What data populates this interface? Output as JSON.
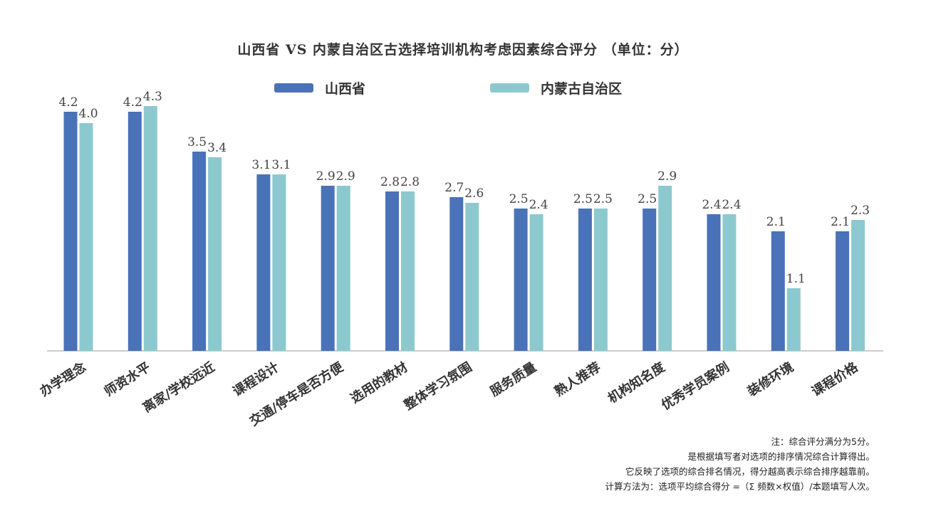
{
  "chart_data": {
    "type": "bar",
    "title": "山西省 VS 内蒙自治区古选择培训机构考虑因素综合评分 （单位：分）",
    "categories": [
      "办学理念",
      "师资水平",
      "离家/学校远近",
      "课程设计",
      "交通/停车是否方便",
      "选用的教材",
      "整体学习氛围",
      "服务质量",
      "熟人推荐",
      "机构知名度",
      "优秀学员案例",
      "装修环境",
      "课程价格"
    ],
    "series": [
      {
        "name": "山西省",
        "color": "#4a72b8",
        "values": [
          4.2,
          4.2,
          3.5,
          3.1,
          2.9,
          2.8,
          2.7,
          2.5,
          2.5,
          2.5,
          2.4,
          2.1,
          2.1
        ]
      },
      {
        "name": "内蒙古自治区",
        "color": "#8cc9cf",
        "values": [
          4.0,
          4.3,
          3.4,
          3.1,
          2.9,
          2.8,
          2.6,
          2.4,
          2.5,
          2.9,
          2.4,
          1.1,
          2.3
        ]
      }
    ],
    "ylim": [
      0,
      4.3
    ],
    "grid": false,
    "legend_position": "top-center"
  },
  "notes": [
    "注：综合评分满分为5分。",
    "是根据填写者对选项的排序情况综合计算得出。",
    "它反映了选项的综合排名情况，得分越高表示综合排序越靠前。",
    "计算方法为：选项平均综合得分 =（Σ 频数×权值）/本题填写人次。"
  ]
}
